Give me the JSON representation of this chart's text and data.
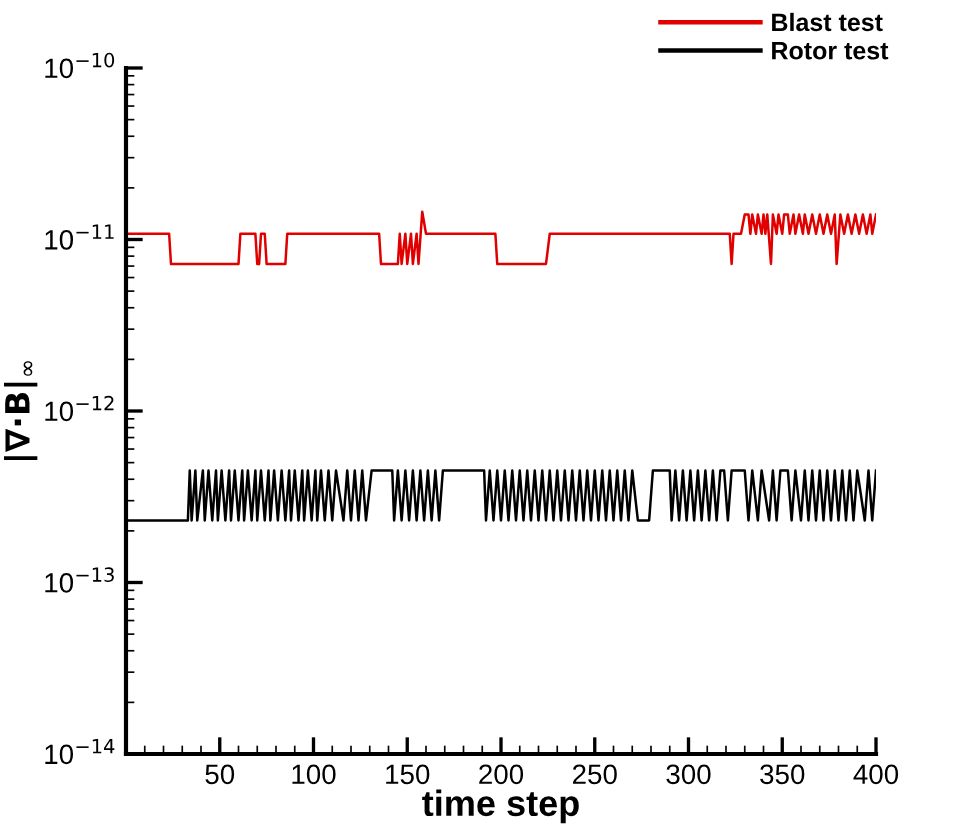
{
  "chart_data": {
    "type": "line",
    "xlabel": "time step",
    "ylabel": "|∇·B|$_{∞}$",
    "log": "y",
    "xlim": [
      0,
      400
    ],
    "ylim": [
      1e-14,
      1e-10
    ],
    "xticks": [
      50,
      100,
      150,
      200,
      250,
      300,
      350,
      400
    ],
    "yticks": [
      {
        "value": 1e-14,
        "label": "10$^{−14}$"
      },
      {
        "value": 1e-13,
        "label": "10$^{−13}$"
      },
      {
        "value": 1e-12,
        "label": "10$^{−12}$"
      },
      {
        "value": 1e-11,
        "label": "10$^{−11}$"
      },
      {
        "value": 1e-10,
        "label": "10$^{−10}$"
      }
    ],
    "grid": false,
    "legend": "top right",
    "marker": "none",
    "line_style": "solid",
    "series": [
      {
        "name": "Blast test",
        "color": "#e00000",
        "x": [
          0,
          23,
          24,
          60,
          61,
          69,
          70,
          71,
          72,
          74,
          75,
          85,
          86,
          135,
          136,
          145,
          146,
          147,
          149,
          150,
          152,
          153,
          155,
          156,
          158,
          160,
          197,
          198,
          224,
          226,
          322,
          323,
          324,
          328,
          330,
          332,
          333,
          334,
          336,
          337,
          339,
          340,
          341,
          342,
          344,
          345,
          347,
          348,
          350,
          351,
          353,
          354,
          356,
          357,
          359,
          361,
          362,
          364,
          366,
          368,
          370,
          372,
          374,
          376,
          378,
          379,
          381,
          383,
          385,
          387,
          389,
          391,
          393,
          395,
          397,
          398,
          400
        ],
        "values": [
          1.08e-11,
          1.08e-11,
          7.2e-12,
          7.2e-12,
          1.08e-11,
          1.08e-11,
          7.2e-12,
          7.2e-12,
          1.08e-11,
          1.08e-11,
          7.2e-12,
          7.2e-12,
          1.08e-11,
          1.08e-11,
          7.2e-12,
          7.2e-12,
          1.08e-11,
          7.2e-12,
          1.08e-11,
          7.2e-12,
          1.08e-11,
          7.2e-12,
          1.08e-11,
          7.2e-12,
          1.45e-11,
          1.08e-11,
          1.08e-11,
          7.2e-12,
          7.2e-12,
          1.08e-11,
          1.08e-11,
          7.2e-12,
          1.08e-11,
          1.08e-11,
          1.4e-11,
          1.4e-11,
          1.08e-11,
          1.4e-11,
          1.08e-11,
          1.4e-11,
          1.08e-11,
          1.4e-11,
          1.08e-11,
          1.4e-11,
          7.2e-12,
          1.4e-11,
          1.08e-11,
          1.4e-11,
          1.08e-11,
          1.4e-11,
          1.4e-11,
          1.08e-11,
          1.4e-11,
          1.08e-11,
          1.4e-11,
          1.08e-11,
          1.4e-11,
          1.08e-11,
          1.4e-11,
          1.08e-11,
          1.4e-11,
          1.08e-11,
          1.4e-11,
          1.08e-11,
          1.4e-11,
          7.2e-12,
          1.4e-11,
          1.08e-11,
          1.4e-11,
          1.08e-11,
          1.4e-11,
          1.08e-11,
          1.4e-11,
          1.08e-11,
          1.4e-11,
          1.08e-11,
          1.4e-11
        ]
      },
      {
        "name": "Rotor test",
        "color": "#000000",
        "x": [
          0,
          33,
          34,
          35,
          37,
          38,
          41,
          42,
          44,
          46,
          48,
          49,
          51,
          53,
          55,
          56,
          58,
          60,
          62,
          63,
          65,
          67,
          69,
          70,
          72,
          74,
          76,
          77,
          79,
          81,
          83,
          85,
          87,
          88,
          90,
          92,
          94,
          95,
          97,
          99,
          101,
          102,
          104,
          106,
          108,
          110,
          112,
          116,
          118,
          120,
          122,
          124,
          126,
          128,
          131,
          142,
          143,
          145,
          147,
          149,
          151,
          153,
          155,
          157,
          159,
          161,
          163,
          165,
          167,
          169,
          180,
          191,
          192,
          194,
          196,
          198,
          200,
          202,
          204,
          206,
          208,
          210,
          212,
          214,
          216,
          218,
          220,
          222,
          224,
          226,
          228,
          230,
          232,
          234,
          236,
          238,
          240,
          242,
          244,
          246,
          248,
          250,
          252,
          254,
          256,
          258,
          260,
          262,
          264,
          266,
          268,
          270,
          273,
          279,
          281,
          290,
          291,
          293,
          295,
          297,
          299,
          301,
          303,
          305,
          307,
          309,
          311,
          313,
          315,
          317,
          319,
          321,
          323,
          330,
          332,
          334,
          337,
          339,
          343,
          345,
          347,
          349,
          353,
          355,
          357,
          360,
          362,
          364,
          366,
          368,
          370,
          372,
          374,
          376,
          378,
          380,
          382,
          384,
          386,
          388,
          390,
          394,
          396,
          398,
          400
        ],
        "values": [
          2.3e-13,
          2.3e-13,
          4.5e-13,
          2.3e-13,
          4.5e-13,
          2.3e-13,
          4.5e-13,
          2.3e-13,
          4.5e-13,
          2.3e-13,
          4.5e-13,
          2.3e-13,
          4.5e-13,
          2.3e-13,
          4.5e-13,
          2.3e-13,
          4.5e-13,
          2.3e-13,
          4.5e-13,
          2.3e-13,
          4.5e-13,
          2.3e-13,
          4.5e-13,
          2.3e-13,
          4.5e-13,
          2.3e-13,
          4.5e-13,
          2.3e-13,
          4.5e-13,
          2.3e-13,
          4.5e-13,
          2.3e-13,
          4.5e-13,
          2.3e-13,
          4.5e-13,
          2.3e-13,
          4.5e-13,
          2.3e-13,
          4.5e-13,
          2.3e-13,
          4.5e-13,
          2.3e-13,
          4.5e-13,
          2.3e-13,
          4.5e-13,
          2.3e-13,
          4.5e-13,
          2.3e-13,
          4.5e-13,
          2.3e-13,
          4.5e-13,
          2.3e-13,
          4.5e-13,
          2.3e-13,
          4.5e-13,
          4.5e-13,
          2.3e-13,
          4.5e-13,
          2.3e-13,
          4.5e-13,
          2.3e-13,
          4.5e-13,
          2.3e-13,
          4.5e-13,
          2.3e-13,
          4.5e-13,
          2.3e-13,
          4.5e-13,
          2.3e-13,
          4.5e-13,
          4.5e-13,
          4.5e-13,
          2.3e-13,
          4.5e-13,
          2.3e-13,
          4.5e-13,
          2.3e-13,
          4.5e-13,
          2.3e-13,
          4.5e-13,
          2.3e-13,
          4.5e-13,
          2.3e-13,
          4.5e-13,
          2.3e-13,
          4.5e-13,
          2.3e-13,
          4.5e-13,
          2.3e-13,
          4.5e-13,
          2.3e-13,
          4.5e-13,
          2.3e-13,
          4.5e-13,
          2.3e-13,
          4.5e-13,
          2.3e-13,
          4.5e-13,
          2.3e-13,
          4.5e-13,
          2.3e-13,
          4.5e-13,
          2.3e-13,
          4.5e-13,
          2.3e-13,
          4.5e-13,
          2.3e-13,
          4.5e-13,
          2.3e-13,
          4.5e-13,
          2.3e-13,
          4.5e-13,
          2.3e-13,
          2.3e-13,
          4.5e-13,
          4.5e-13,
          2.3e-13,
          4.5e-13,
          2.3e-13,
          4.5e-13,
          2.3e-13,
          4.5e-13,
          2.3e-13,
          4.5e-13,
          2.3e-13,
          4.5e-13,
          2.3e-13,
          4.5e-13,
          2.3e-13,
          4.5e-13,
          4.5e-13,
          2.3e-13,
          4.5e-13,
          4.5e-13,
          2.3e-13,
          4.5e-13,
          2.3e-13,
          4.5e-13,
          2.3e-13,
          4.5e-13,
          2.3e-13,
          4.5e-13,
          4.5e-13,
          2.3e-13,
          4.5e-13,
          2.3e-13,
          4.5e-13,
          2.3e-13,
          4.5e-13,
          2.3e-13,
          4.5e-13,
          2.3e-13,
          4.5e-13,
          2.3e-13,
          4.5e-13,
          2.3e-13,
          4.5e-13,
          2.3e-13,
          4.5e-13,
          2.3e-13,
          4.5e-13,
          2.3e-13,
          4.5e-13,
          2.3e-13,
          4.5e-13
        ]
      }
    ]
  }
}
